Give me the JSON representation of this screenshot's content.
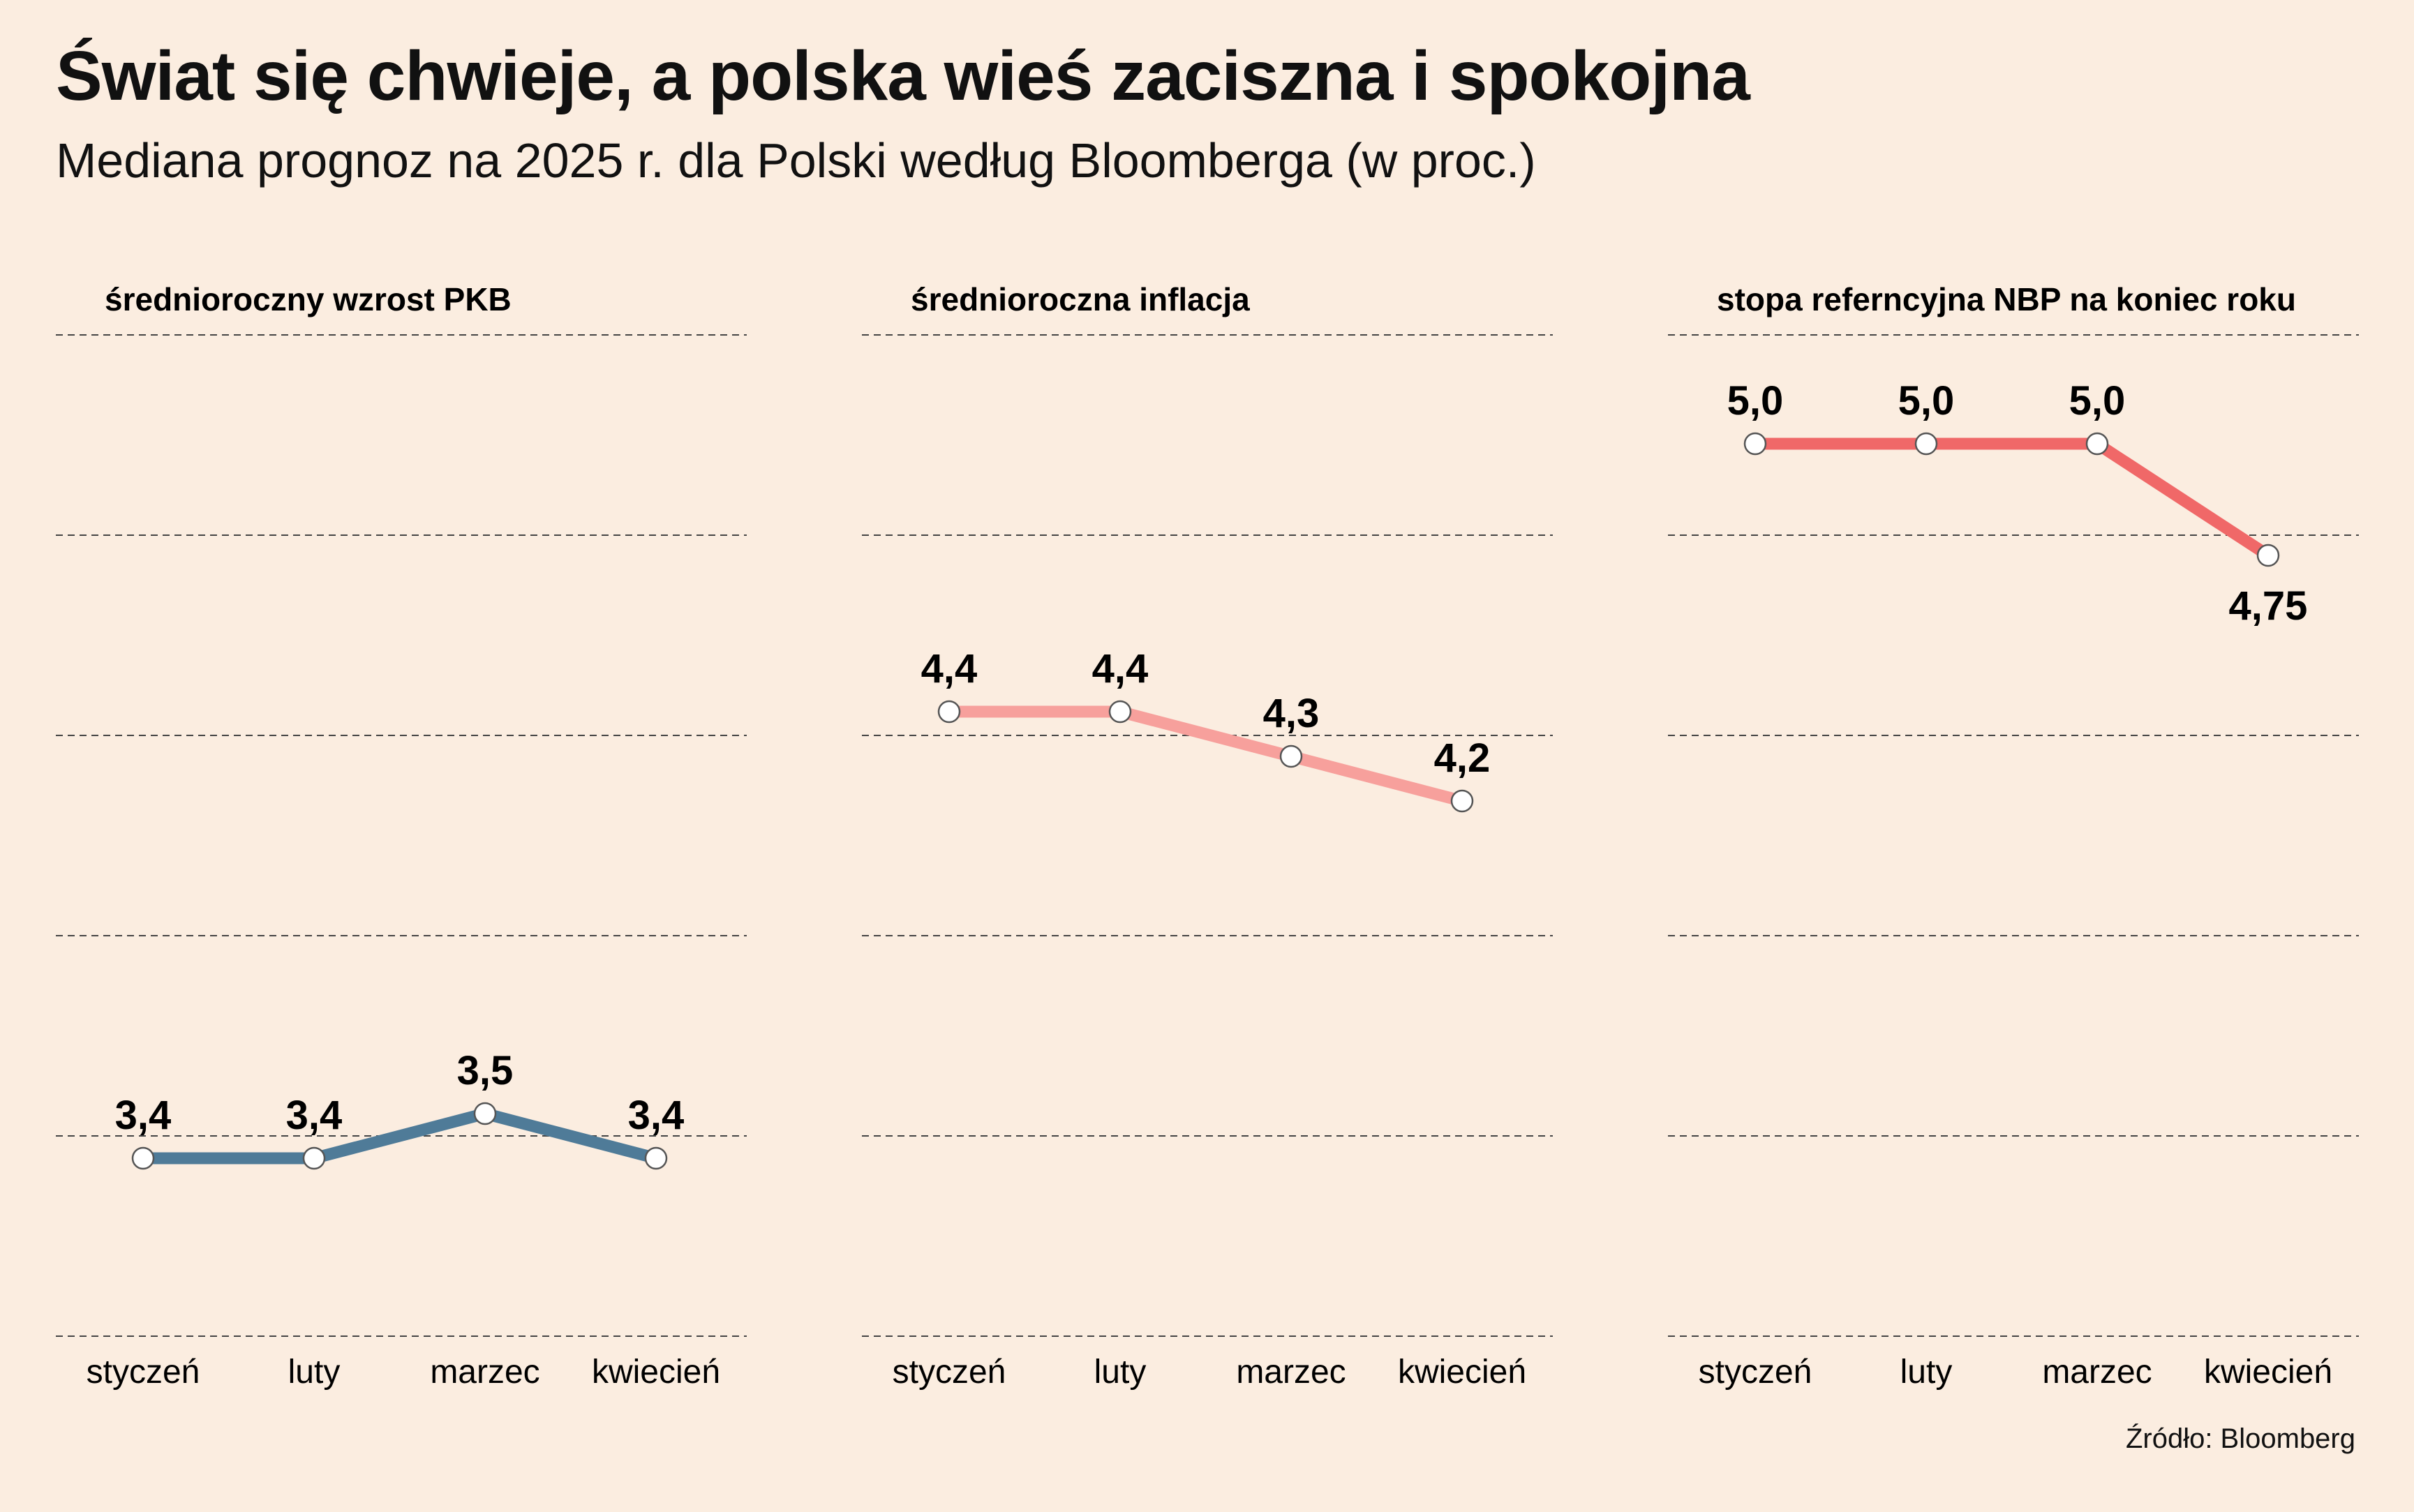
{
  "header": {
    "title": "Świat się chwieje, a polska wieś zaciszna i spokojna",
    "subtitle": "Mediana prognoz na 2025 r. dla Polski według Bloomberga (w proc.)"
  },
  "footer": {
    "source": "Źródło: Bloomberg"
  },
  "chart_data": [
    {
      "type": "line",
      "title": "średnioroczny wzrost PKB",
      "categories": [
        "styczeń",
        "luty",
        "marzec",
        "kwiecień"
      ],
      "values": [
        3.4,
        3.4,
        3.5,
        3.4
      ],
      "labels": [
        "3,4",
        "3,4",
        "3,5",
        "3,4"
      ],
      "label_position": [
        "above",
        "above",
        "above",
        "above"
      ],
      "color": "#4f7b98",
      "ylim": [
        3.0,
        5.3
      ],
      "grid": true
    },
    {
      "type": "line",
      "title": "średnioroczna inflacja",
      "categories": [
        "styczeń",
        "luty",
        "marzec",
        "kwiecień"
      ],
      "values": [
        4.4,
        4.4,
        4.3,
        4.2
      ],
      "labels": [
        "4,4",
        "4,4",
        "4,3",
        "4,2"
      ],
      "label_position": [
        "above",
        "above",
        "above",
        "above"
      ],
      "color": "#f7a09c",
      "ylim": [
        3.0,
        5.3
      ],
      "grid": true
    },
    {
      "type": "line",
      "title": "stopa referncyjna NBP na koniec roku",
      "categories": [
        "styczeń",
        "luty",
        "marzec",
        "kwiecień"
      ],
      "values": [
        5.0,
        5.0,
        5.0,
        4.75
      ],
      "labels": [
        "5,0",
        "5,0",
        "5,0",
        "4,75"
      ],
      "label_position": [
        "above",
        "above",
        "above",
        "below"
      ],
      "color": "#f06868",
      "ylim": [
        3.0,
        5.3
      ],
      "grid": true
    }
  ]
}
